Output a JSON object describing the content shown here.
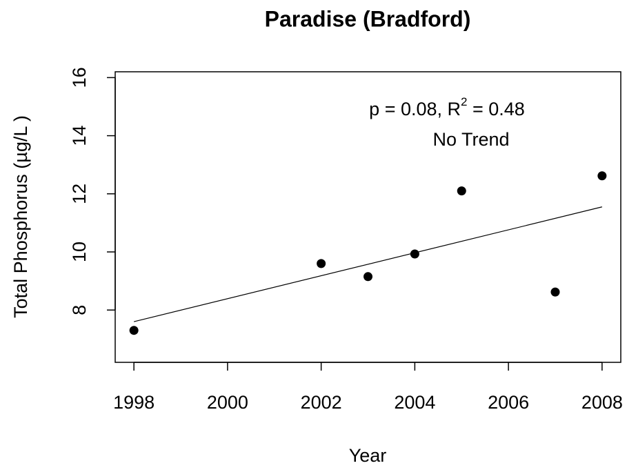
{
  "chart_data": {
    "type": "scatter",
    "title": "Paradise (Bradford)",
    "x_label": "Year",
    "y_label": "Total Phosphorus (µg/L )",
    "annotation": [
      "p = 0.08, R",
      "2",
      " = 0.48"
    ],
    "annotation_2": "No Trend",
    "x": [
      1998,
      2002,
      2003,
      2004,
      2005,
      2007,
      2008
    ],
    "values": [
      7.3,
      9.6,
      9.15,
      9.93,
      12.1,
      8.62,
      12.62
    ],
    "color": "#000000",
    "trend": {
      "x": [
        1998,
        2008
      ],
      "values": [
        7.6,
        11.55
      ]
    },
    "xlim": [
      1997.6,
      2008.4
    ],
    "ylim": [
      6.2,
      16.2
    ],
    "xticks": [
      1998,
      2000,
      2002,
      2004,
      2006,
      2008
    ],
    "yticks": [
      8,
      10,
      12,
      14,
      16
    ],
    "grid": false
  }
}
